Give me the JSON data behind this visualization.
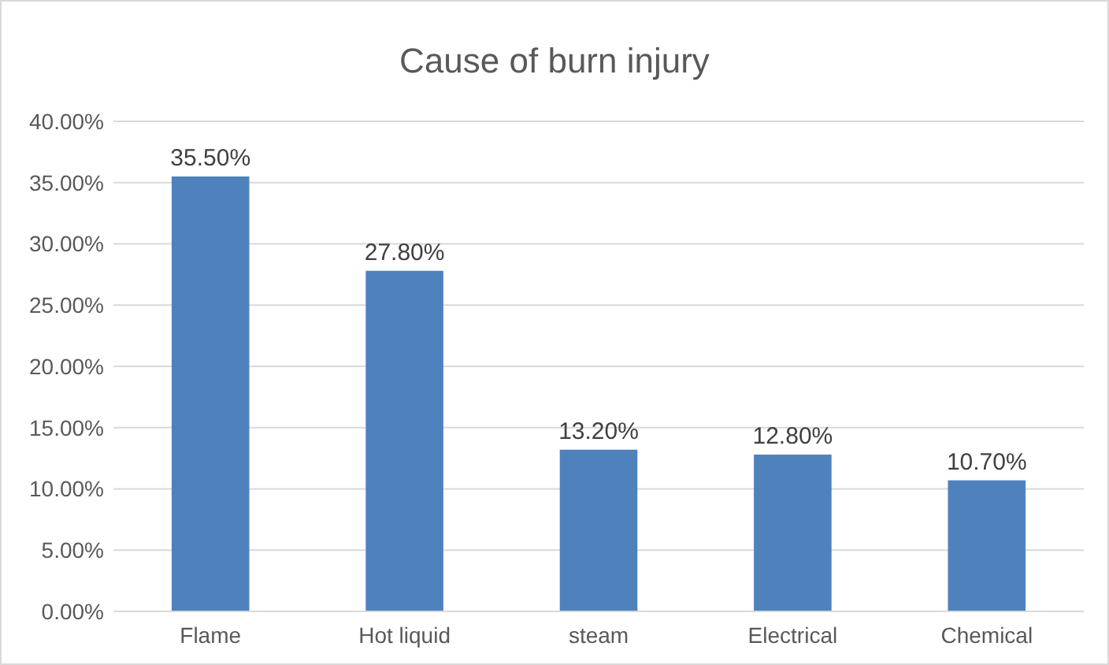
{
  "chart_data": {
    "type": "bar",
    "title": "Cause of burn injury",
    "categories": [
      "Flame",
      "Hot liquid",
      "steam",
      "Electrical",
      "Chemical"
    ],
    "values": [
      35.5,
      27.8,
      13.2,
      12.8,
      10.7
    ],
    "value_labels": [
      "35.50%",
      "27.80%",
      "13.20%",
      "12.80%",
      "10.70%"
    ],
    "color": "#4f81bd",
    "ylim": [
      0,
      40
    ],
    "yticks": [
      {
        "value": 0,
        "label": "0.00%"
      },
      {
        "value": 5,
        "label": "5.00%"
      },
      {
        "value": 10,
        "label": "10.00%"
      },
      {
        "value": 15,
        "label": "15.00%"
      },
      {
        "value": 20,
        "label": "20.00%"
      },
      {
        "value": 25,
        "label": "25.00%"
      },
      {
        "value": 30,
        "label": "30.00%"
      },
      {
        "value": 35,
        "label": "35.00%"
      },
      {
        "value": 40,
        "label": "40.00%"
      }
    ],
    "grid": "y"
  }
}
